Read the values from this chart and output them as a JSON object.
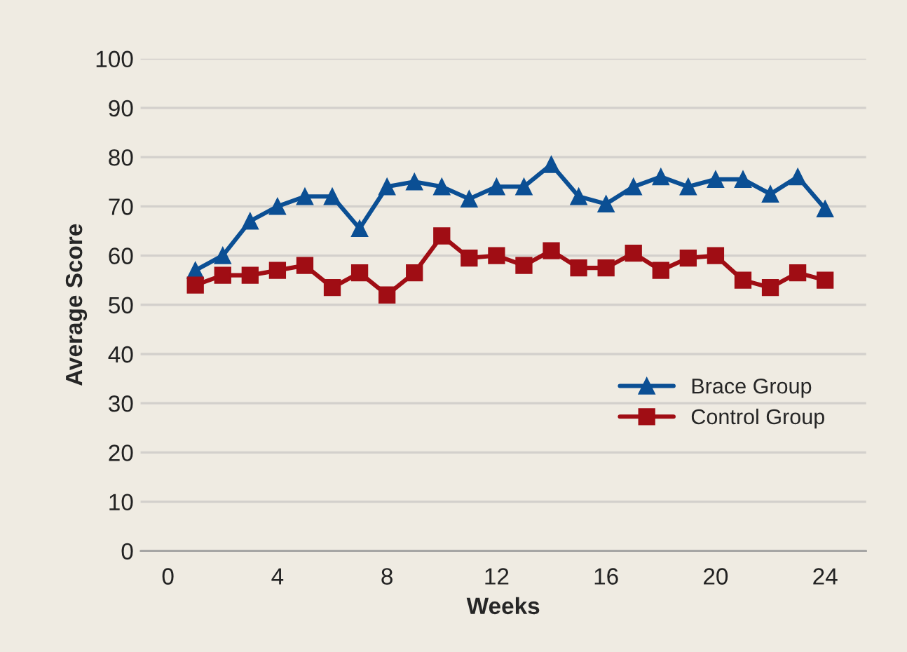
{
  "chart_data": {
    "type": "line",
    "xlabel": "Weeks",
    "ylabel": "Average Score",
    "x": [
      1,
      2,
      3,
      4,
      5,
      6,
      7,
      8,
      9,
      10,
      11,
      12,
      13,
      14,
      15,
      16,
      17,
      18,
      19,
      20,
      21,
      22,
      23,
      24
    ],
    "series": [
      {
        "name": "Brace Group",
        "color": "#0b4f94",
        "marker": "triangle",
        "values": [
          57,
          60,
          67,
          70,
          72,
          72,
          65.5,
          74,
          75,
          74,
          71.5,
          74,
          74,
          78.5,
          72,
          70.5,
          74,
          76,
          74,
          75.5,
          75.5,
          72.5,
          76,
          69.5
        ]
      },
      {
        "name": "Control Group",
        "color": "#a00d14",
        "marker": "square",
        "values": [
          54,
          56,
          56,
          57,
          58,
          53.5,
          56.5,
          52,
          56.5,
          64,
          59.5,
          60,
          58,
          61,
          57.5,
          57.5,
          60.5,
          57,
          59.5,
          60,
          55,
          53.5,
          56.5,
          55
        ]
      }
    ],
    "xlim": [
      -1,
      25.5
    ],
    "xticks": [
      0,
      4,
      8,
      12,
      16,
      20,
      24
    ],
    "ylim": [
      0,
      100
    ],
    "yticks": [
      0,
      10,
      20,
      30,
      40,
      50,
      60,
      70,
      80,
      90,
      100
    ],
    "grid": "y",
    "legend": "right",
    "line_style": "solid"
  }
}
